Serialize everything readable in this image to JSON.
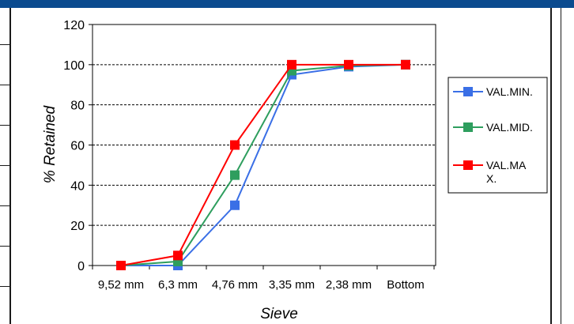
{
  "chart_data": {
    "type": "line",
    "title": "",
    "xlabel": "Sieve",
    "ylabel": "% Retained",
    "categories": [
      "9,52 mm",
      "6,3 mm",
      "4,76 mm",
      "3,35 mm",
      "2,38 mm",
      "Bottom"
    ],
    "ylim": [
      0,
      120
    ],
    "yticks": [
      0,
      20,
      40,
      60,
      80,
      100,
      120
    ],
    "grid": true,
    "legend_position": "right",
    "series": [
      {
        "name": "VAL.MIN.",
        "color": "#3a6fe6",
        "values": [
          0,
          0,
          30,
          95,
          99,
          100
        ]
      },
      {
        "name": "VAL.MID.",
        "color": "#2e9e5e",
        "values": [
          0,
          2,
          45,
          97,
          99.5,
          100
        ]
      },
      {
        "name": "VAL.MA X.",
        "color": "#ff0000",
        "values": [
          0,
          5,
          60,
          100,
          100,
          100
        ]
      }
    ]
  }
}
